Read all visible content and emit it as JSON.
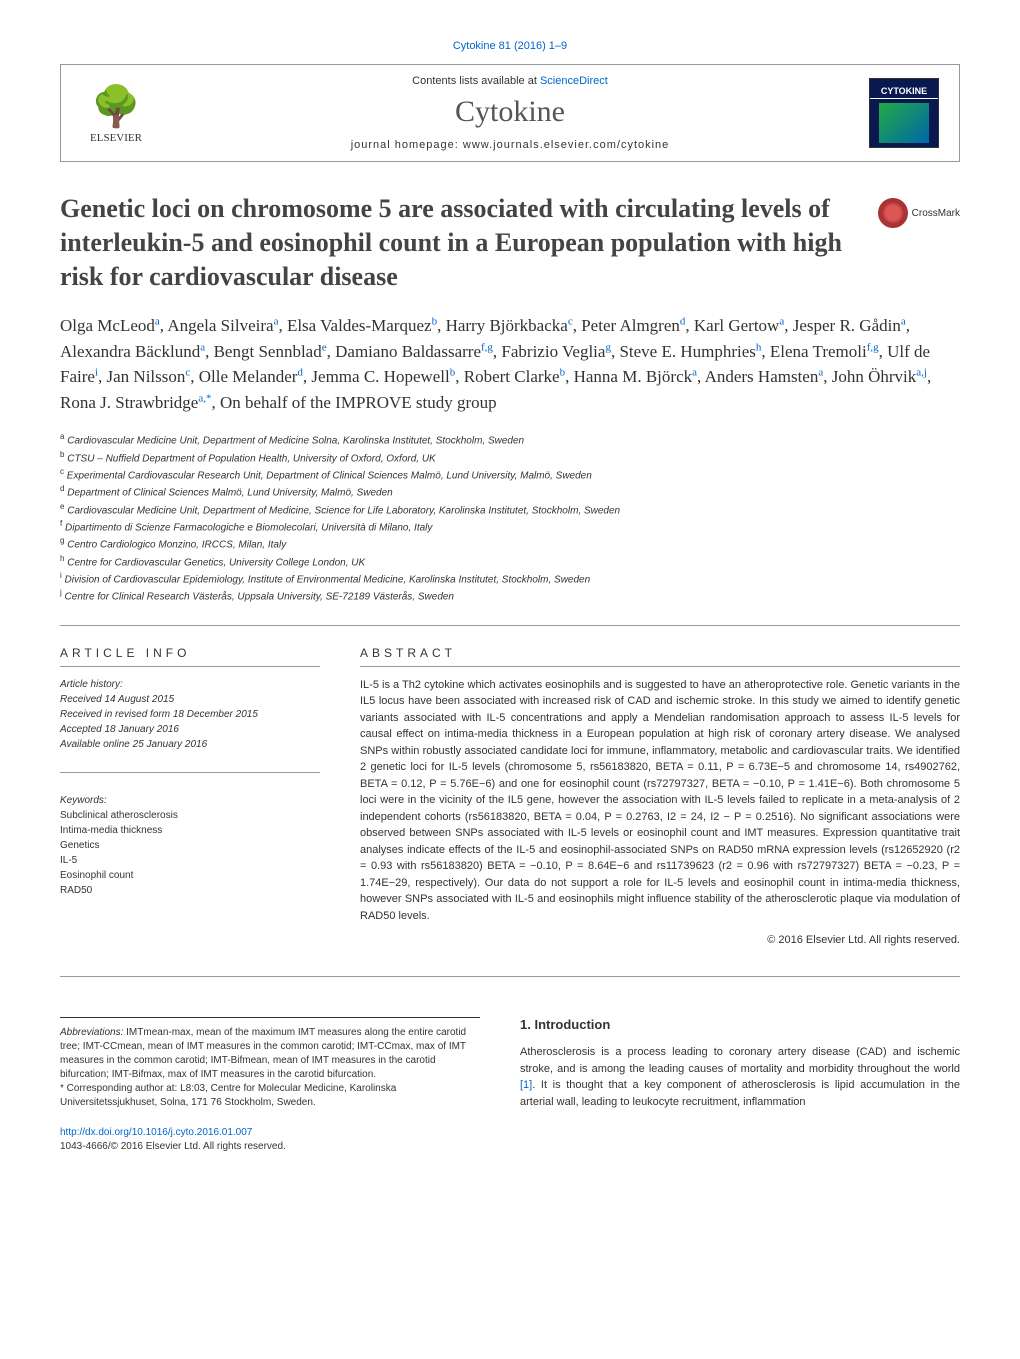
{
  "header": {
    "citation": "Cytokine 81 (2016) 1–9",
    "contents_line": "Contents lists available at ",
    "sciencedirect": "ScienceDirect",
    "journal_name": "Cytokine",
    "homepage_label": "journal homepage: ",
    "homepage_url": "www.journals.elsevier.com/cytokine",
    "elsevier": "ELSEVIER",
    "cytokine_badge": "CYTOKINE"
  },
  "title": "Genetic loci on chromosome 5 are associated with circulating levels of interleukin-5 and eosinophil count in a European population with high risk for cardiovascular disease",
  "crossmark": "CrossMark",
  "authors_html": "Olga McLeod<sup>a</sup>, Angela Silveira<sup>a</sup>, Elsa Valdes-Marquez<sup>b</sup>, Harry Björkbacka<sup>c</sup>, Peter Almgren<sup>d</sup>, Karl Gertow<sup>a</sup>, Jesper R. Gådin<sup>a</sup>, Alexandra Bäcklund<sup>a</sup>, Bengt Sennblad<sup>e</sup>, Damiano Baldassarre<sup>f,g</sup>, Fabrizio Veglia<sup>g</sup>, Steve E. Humphries<sup>h</sup>, Elena Tremoli<sup>f,g</sup>, Ulf de Faire<sup>i</sup>, Jan Nilsson<sup>c</sup>, Olle Melander<sup>d</sup>, Jemma C. Hopewell<sup>b</sup>, Robert Clarke<sup>b</sup>, Hanna M. Björck<sup>a</sup>, Anders Hamsten<sup>a</sup>, John Öhrvik<sup>a,j</sup>, Rona J. Strawbridge<sup>a,*</sup>, On behalf of the IMPROVE study group",
  "affiliations": [
    "a Cardiovascular Medicine Unit, Department of Medicine Solna, Karolinska Institutet, Stockholm, Sweden",
    "b CTSU – Nuffield Department of Population Health, University of Oxford, Oxford, UK",
    "c Experimental Cardiovascular Research Unit, Department of Clinical Sciences Malmö, Lund University, Malmö, Sweden",
    "d Department of Clinical Sciences Malmö, Lund University, Malmö, Sweden",
    "e Cardiovascular Medicine Unit, Department of Medicine, Science for Life Laboratory, Karolinska Institutet, Stockholm, Sweden",
    "f Dipartimento di Scienze Farmacologiche e Biomolecolari, Università di Milano, Italy",
    "g Centro Cardiologico Monzino, IRCCS, Milan, Italy",
    "h Centre for Cardiovascular Genetics, University College London, UK",
    "i Division of Cardiovascular Epidemiology, Institute of Environmental Medicine, Karolinska Institutet, Stockholm, Sweden",
    "j Centre for Clinical Research Västerås, Uppsala University, SE-72189 Västerås, Sweden"
  ],
  "article_info": {
    "header": "ARTICLE INFO",
    "history_label": "Article history:",
    "history": [
      "Received 14 August 2015",
      "Received in revised form 18 December 2015",
      "Accepted 18 January 2016",
      "Available online 25 January 2016"
    ],
    "keywords_label": "Keywords:",
    "keywords": [
      "Subclinical atherosclerosis",
      "Intima-media thickness",
      "Genetics",
      "IL-5",
      "Eosinophil count",
      "RAD50"
    ]
  },
  "abstract": {
    "header": "ABSTRACT",
    "text": "IL-5 is a Th2 cytokine which activates eosinophils and is suggested to have an atheroprotective role. Genetic variants in the IL5 locus have been associated with increased risk of CAD and ischemic stroke. In this study we aimed to identify genetic variants associated with IL-5 concentrations and apply a Mendelian randomisation approach to assess IL-5 levels for causal effect on intima-media thickness in a European population at high risk of coronary artery disease. We analysed SNPs within robustly associated candidate loci for immune, inflammatory, metabolic and cardiovascular traits. We identified 2 genetic loci for IL-5 levels (chromosome 5, rs56183820, BETA = 0.11, P = 6.73E−5 and chromosome 14, rs4902762, BETA = 0.12, P = 5.76E−6) and one for eosinophil count (rs72797327, BETA = −0.10, P = 1.41E−6). Both chromosome 5 loci were in the vicinity of the IL5 gene, however the association with IL-5 levels failed to replicate in a meta-analysis of 2 independent cohorts (rs56183820, BETA = 0.04, P = 0.2763, I2 = 24, I2 − P = 0.2516). No significant associations were observed between SNPs associated with IL-5 levels or eosinophil count and IMT measures. Expression quantitative trait analyses indicate effects of the IL-5 and eosinophil-associated SNPs on RAD50 mRNA expression levels (rs12652920 (r2 = 0.93 with rs56183820) BETA = −0.10, P = 8.64E−6 and rs11739623 (r2 = 0.96 with rs72797327) BETA = −0.23, P = 1.74E−29, respectively). Our data do not support a role for IL-5 levels and eosinophil count in intima-media thickness, however SNPs associated with IL-5 and eosinophils might influence stability of the atherosclerotic plaque via modulation of RAD50 levels.",
    "copyright": "© 2016 Elsevier Ltd. All rights reserved."
  },
  "footer": {
    "abbrev_label": "Abbreviations:",
    "abbrev_text": " IMTmean-max, mean of the maximum IMT measures along the entire carotid tree; IMT-CCmean, mean of IMT measures in the common carotid; IMT-CCmax, max of IMT measures in the common carotid; IMT-Bifmean, mean of IMT measures in the carotid bifurcation; IMT-Bifmax, max of IMT measures in the carotid bifurcation.",
    "corresponding": "* Corresponding author at: L8:03, Centre for Molecular Medicine, Karolinska Universitetssjukhuset, Solna, 171 76 Stockholm, Sweden.",
    "doi": "http://dx.doi.org/10.1016/j.cyto.2016.01.007",
    "issn": "1043-4666/© 2016 Elsevier Ltd. All rights reserved."
  },
  "intro": {
    "header": "1. Introduction",
    "text": "Atherosclerosis is a process leading to coronary artery disease (CAD) and ischemic stroke, and is among the leading causes of mortality and morbidity throughout the world [1]. It is thought that a key component of atherosclerosis is lipid accumulation in the arterial wall, leading to leukocyte recruitment, inflammation"
  }
}
